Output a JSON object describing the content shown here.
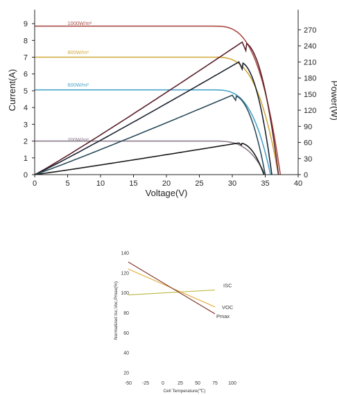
{
  "chart_data": [
    {
      "type": "line",
      "xlabel": "Voltage(V)",
      "ylabel": "Current(A)",
      "y2label": "Power(W)",
      "xlim": [
        0,
        40
      ],
      "ylim": [
        0,
        9.5
      ],
      "y2lim": [
        0,
        297
      ],
      "xticks": [
        0,
        5,
        10,
        15,
        20,
        25,
        30,
        35,
        40
      ],
      "yticks": [
        0,
        1,
        2,
        3,
        4,
        5,
        6,
        7,
        8,
        9
      ],
      "y2ticks": [
        0,
        30,
        60,
        90,
        120,
        150,
        180,
        210,
        240,
        270
      ],
      "grid": false,
      "series": [
        {
          "name": "1000W/m²",
          "color": "#a84a42",
          "isc": 8.85,
          "knee": 27,
          "voc": 37.3
        },
        {
          "name": "800W/m²",
          "color": "#d1a93a",
          "isc": 7.0,
          "knee": 27,
          "voc": 37.0
        },
        {
          "name": "600W/m²",
          "color": "#4aa3c9",
          "isc": 5.05,
          "knee": 27,
          "voc": 35.8
        },
        {
          "name": "200W/m²",
          "color": "#8a7a8a",
          "isc": 2.0,
          "knee": 27,
          "voc": 35.0
        }
      ],
      "power_series": [
        {
          "color": "#5a1f2a",
          "vmp": 31.5,
          "pmax": 247,
          "voc": 37.0
        },
        {
          "color": "#1a2230",
          "vmp": 31.0,
          "pmax": 210,
          "voc": 36.0
        },
        {
          "color": "#2a4a5a",
          "vmp": 30.0,
          "pmax": 148,
          "voc": 35.0
        },
        {
          "color": "#1a1a1a",
          "vmp": 31.0,
          "pmax": 59,
          "voc": 34.8
        }
      ]
    },
    {
      "type": "line",
      "xlabel": "Cell Temperature(℃)",
      "ylabel": "Normalized Isc,Voc,Pmax(%)",
      "xlim": [
        -55,
        110
      ],
      "ylim": [
        15,
        145
      ],
      "xticks": [
        -50,
        -25,
        0,
        25,
        50,
        75,
        100
      ],
      "yticks": [
        20,
        40,
        60,
        80,
        100,
        120,
        140
      ],
      "grid": false,
      "series": [
        {
          "name": "ISC",
          "color": "#b8b840",
          "x": [
            -50,
            75
          ],
          "y": [
            98,
            103
          ]
        },
        {
          "name": "VOC",
          "color": "#e0a830",
          "x": [
            -50,
            75
          ],
          "y": [
            124,
            86
          ]
        },
        {
          "name": "Pmax",
          "color": "#7a2a20",
          "x": [
            -50,
            75
          ],
          "y": [
            131,
            79
          ]
        }
      ]
    }
  ]
}
